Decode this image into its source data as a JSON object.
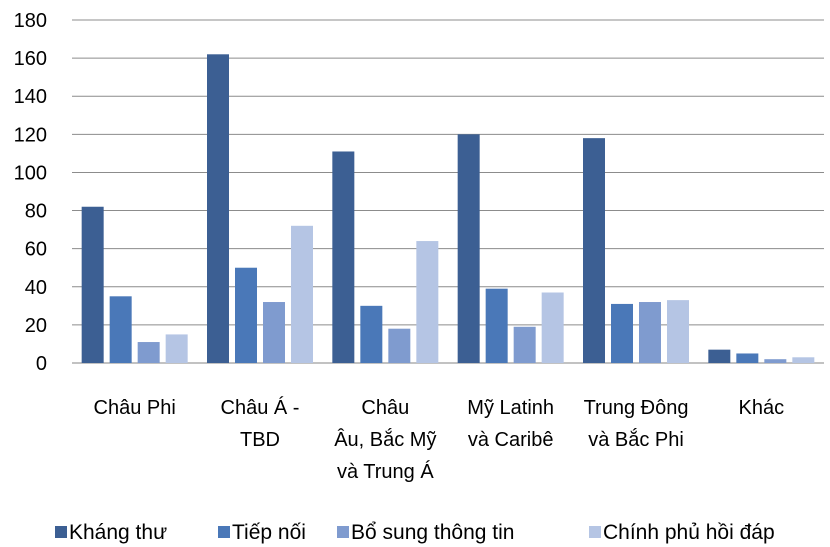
{
  "chart_data": {
    "type": "bar",
    "title": "",
    "xlabel": "",
    "ylabel": "",
    "ylim": [
      0,
      180
    ],
    "yticks": [
      0,
      20,
      40,
      60,
      80,
      100,
      120,
      140,
      160,
      180
    ],
    "grid": true,
    "legend_position": "bottom",
    "categories": [
      [
        "Châu Phi"
      ],
      [
        "Châu Á -",
        "TBD"
      ],
      [
        "Châu",
        "Âu, Bắc Mỹ",
        "và Trung Á"
      ],
      [
        "Mỹ Latinh",
        "và Caribê"
      ],
      [
        "Trung Đông",
        "và Bắc Phi"
      ],
      [
        "Khác"
      ]
    ],
    "series": [
      {
        "name": "Kháng thư",
        "color": "#3c5f93",
        "values": [
          82,
          162,
          111,
          120,
          118,
          7
        ]
      },
      {
        "name": "Tiếp nối",
        "color": "#4a78b8",
        "values": [
          35,
          50,
          30,
          39,
          31,
          5
        ]
      },
      {
        "name": "Bổ sung thông tin",
        "color": "#7f9bcf",
        "values": [
          11,
          32,
          18,
          19,
          32,
          2
        ]
      },
      {
        "name": "Chính phủ hồi đáp",
        "color": "#b5c5e4",
        "values": [
          15,
          72,
          64,
          37,
          33,
          3
        ]
      }
    ]
  }
}
